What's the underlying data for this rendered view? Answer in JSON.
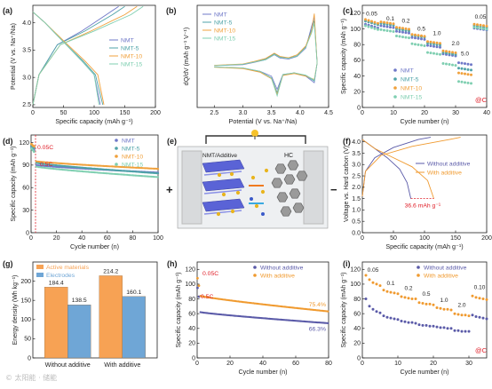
{
  "colors": {
    "NMT": "#6f78c8",
    "NMT-5": "#4fa3a8",
    "NMT-10": "#f0a13c",
    "NMT-15": "#7fcfb1",
    "without": "#5a5aa8",
    "with": "#f09a2f",
    "red": "#e0202a",
    "bar_active": "#f7a254",
    "bar_elec": "#6fa6d6"
  },
  "panels": {
    "a": {
      "letter": "(a)",
      "xlabel": "Specific capacity (mAh g⁻¹)",
      "ylabel": "Potential (V vs. Na⁺/Na)",
      "xticks": [
        "0",
        "50",
        "100",
        "150",
        "200"
      ],
      "yticks": [
        "2.5",
        "3.0",
        "3.5",
        "4.0"
      ],
      "legend": [
        "NMT",
        "NMT-5",
        "NMT-10",
        "NMT-15"
      ]
    },
    "b": {
      "letter": "(b)",
      "xlabel": "Potential (V vs. Na⁺/Na)",
      "ylabel": "dQ/dV (mAh g⁻¹ V⁻¹)",
      "xticks": [
        "2.5",
        "3.0",
        "3.5",
        "4.0",
        "4.5"
      ],
      "legend": [
        "NMT",
        "NMT-5",
        "NMT-10",
        "NMT-15"
      ]
    },
    "c": {
      "letter": "(c)",
      "xlabel": "Cycle number (n)",
      "ylabel": "Specific capacity (mAh g⁻¹)",
      "xticks": [
        "0",
        "10",
        "20",
        "30",
        "40"
      ],
      "yticks": [
        "0",
        "20",
        "40",
        "60",
        "80",
        "100",
        "120"
      ],
      "legend": [
        "NMT",
        "NMT-5",
        "NMT-10",
        "NMT-15"
      ],
      "rates": [
        "0.05",
        "0.1",
        "0.2",
        "0.5",
        "1.0",
        "2.0",
        "5.0",
        "0.05"
      ],
      "unit": "@C"
    },
    "d": {
      "letter": "(d)",
      "xlabel": "Cycle number (n)",
      "ylabel": "Specific capacity (mAh g⁻¹)",
      "xticks": [
        "0",
        "20",
        "40",
        "60",
        "80",
        "100"
      ],
      "yticks": [
        "0",
        "30",
        "60",
        "90",
        "120"
      ],
      "legend": [
        "NMT",
        "NMT-5",
        "NMT-10",
        "NMT-15"
      ],
      "ann1": "0.05C",
      "ann2": "0.5C"
    },
    "e": {
      "letter": "(e)",
      "cathode": "NMT/Additive",
      "anode": "HC",
      "plus": "+",
      "minus": "−"
    },
    "f": {
      "letter": "(f)",
      "xlabel": "Specific capacity (mAh g⁻¹)",
      "ylabel": "Voltage vs. Hard carbon (V)",
      "xticks": [
        "0",
        "50",
        "100",
        "150",
        "200"
      ],
      "yticks": [
        "0.0",
        "0.5",
        "1.0",
        "1.5",
        "2.0",
        "2.5",
        "3.0",
        "3.5",
        "4.0"
      ],
      "legend": [
        "Without additive",
        "With additive"
      ],
      "ann": "36.6 mAh g⁻¹"
    },
    "g": {
      "letter": "(g)",
      "ylabel": "Energy density (Wh kg⁻¹)",
      "yticks": [
        "0",
        "50",
        "100",
        "150",
        "200"
      ],
      "legend": [
        "Active materials",
        "Electrodes"
      ],
      "groups": [
        "Without additive",
        "With additive"
      ]
    },
    "h": {
      "letter": "(h)",
      "xlabel": "Cycle number (n)",
      "ylabel": "Specific capacity (mAh g⁻¹)",
      "xticks": [
        "0",
        "20",
        "40",
        "60",
        "80"
      ],
      "yticks": [
        "0",
        "20",
        "40",
        "60",
        "80",
        "100",
        "120"
      ],
      "legend": [
        "Without additive",
        "With additive"
      ],
      "ann1": "0.05C",
      "ann2": "0.5C",
      "pct_with": "75.4%",
      "pct_without": "66.3%"
    },
    "i": {
      "letter": "(i)",
      "xlabel": "Cycle number (n)",
      "ylabel": "Specific capacity (mAh g⁻¹)",
      "xticks": [
        "0",
        "10",
        "20",
        "30"
      ],
      "yticks": [
        "0",
        "20",
        "40",
        "60",
        "80",
        "100",
        "120"
      ],
      "legend": [
        "Without additive",
        "With additive"
      ],
      "rates": [
        "0.05",
        "0.1",
        "0.2",
        "0.5",
        "1.0",
        "2.0",
        "0.10"
      ],
      "unit": "@C"
    }
  },
  "chart_data": [
    {
      "panel": "a",
      "type": "line",
      "xlim": [
        0,
        200
      ],
      "ylim": [
        2.5,
        4.3
      ],
      "series": [
        {
          "name": "NMT",
          "charge": [
            [
              0,
              2.5
            ],
            [
              10,
              3.05
            ],
            [
              40,
              3.6
            ],
            [
              80,
              3.85
            ],
            [
              120,
              4.15
            ],
            [
              140,
              4.3
            ]
          ],
          "discharge": [
            [
              0,
              4.2
            ],
            [
              20,
              4.0
            ],
            [
              50,
              3.65
            ],
            [
              80,
              3.3
            ],
            [
              100,
              3.05
            ],
            [
              110,
              2.5
            ]
          ]
        },
        {
          "name": "NMT-5",
          "charge": [
            [
              0,
              2.5
            ],
            [
              10,
              3.05
            ],
            [
              40,
              3.6
            ],
            [
              85,
              3.85
            ],
            [
              130,
              4.15
            ],
            [
              150,
              4.3
            ]
          ],
          "discharge": [
            [
              0,
              4.2
            ],
            [
              20,
              4.0
            ],
            [
              50,
              3.65
            ],
            [
              82,
              3.3
            ],
            [
              102,
              3.05
            ],
            [
              114,
              2.5
            ]
          ]
        },
        {
          "name": "NMT-10",
          "charge": [
            [
              0,
              2.5
            ],
            [
              10,
              3.05
            ],
            [
              45,
              3.6
            ],
            [
              95,
              3.85
            ],
            [
              150,
              4.15
            ],
            [
              170,
              4.3
            ]
          ],
          "discharge": [
            [
              0,
              4.2
            ],
            [
              20,
              4.0
            ],
            [
              52,
              3.65
            ],
            [
              85,
              3.3
            ],
            [
              106,
              3.05
            ],
            [
              116,
              2.5
            ]
          ]
        },
        {
          "name": "NMT-15",
          "charge": [
            [
              0,
              2.5
            ],
            [
              10,
              3.05
            ],
            [
              45,
              3.6
            ],
            [
              100,
              3.85
            ],
            [
              160,
              4.15
            ],
            [
              180,
              4.3
            ]
          ],
          "discharge": [
            [
              0,
              4.2
            ],
            [
              20,
              4.0
            ],
            [
              50,
              3.65
            ],
            [
              80,
              3.3
            ],
            [
              100,
              3.05
            ],
            [
              108,
              2.5
            ]
          ]
        }
      ]
    },
    {
      "panel": "b",
      "type": "line",
      "xlim": [
        2.2,
        4.5
      ],
      "ylim": [
        -1.2,
        1.8
      ],
      "series": [
        {
          "name": "NMT",
          "x": [
            2.5,
            3.0,
            3.2,
            3.4,
            3.55,
            3.65,
            3.8,
            3.95,
            4.1,
            4.2,
            4.25,
            4.3,
            4.25,
            4.1,
            3.9,
            3.7,
            3.6,
            3.5,
            3.3,
            3.0,
            2.5
          ],
          "y": [
            0.02,
            0.05,
            0.12,
            0.2,
            0.35,
            0.25,
            0.22,
            0.3,
            0.55,
            1.2,
            1.5,
            0.1,
            -0.5,
            -0.3,
            -0.2,
            -0.25,
            -0.7,
            -0.3,
            -0.15,
            -0.05,
            -0.02
          ]
        },
        {
          "name": "NMT-5",
          "x": [
            2.5,
            3.0,
            3.2,
            3.4,
            3.55,
            3.65,
            3.8,
            3.95,
            4.1,
            4.2,
            4.25,
            4.3,
            4.25,
            4.1,
            3.9,
            3.7,
            3.6,
            3.5,
            3.3,
            3.0,
            2.5
          ],
          "y": [
            0.02,
            0.06,
            0.14,
            0.22,
            0.38,
            0.28,
            0.25,
            0.32,
            0.6,
            1.1,
            1.4,
            0.1,
            -0.45,
            -0.28,
            -0.2,
            -0.26,
            -0.8,
            -0.35,
            -0.16,
            -0.06,
            -0.02
          ]
        },
        {
          "name": "NMT-10",
          "x": [
            2.5,
            3.0,
            3.2,
            3.4,
            3.55,
            3.65,
            3.8,
            3.95,
            4.1,
            4.2,
            4.25,
            4.3,
            4.25,
            4.1,
            3.9,
            3.7,
            3.6,
            3.5,
            3.3,
            3.0,
            2.5
          ],
          "y": [
            0.03,
            0.07,
            0.15,
            0.24,
            0.4,
            0.3,
            0.26,
            0.35,
            0.62,
            1.05,
            1.6,
            0.1,
            -0.4,
            -0.3,
            -0.22,
            -0.28,
            -0.85,
            -0.38,
            -0.18,
            -0.07,
            -0.03
          ]
        },
        {
          "name": "NMT-15",
          "x": [
            2.5,
            3.0,
            3.2,
            3.4,
            3.55,
            3.65,
            3.8,
            3.95,
            4.1,
            4.2,
            4.25,
            4.3,
            4.25,
            4.1,
            3.9,
            3.7,
            3.6,
            3.5,
            3.3,
            3.0,
            2.5
          ],
          "y": [
            0.02,
            0.06,
            0.13,
            0.2,
            0.36,
            0.27,
            0.24,
            0.31,
            0.58,
            1.0,
            1.3,
            0.1,
            -0.42,
            -0.27,
            -0.2,
            -0.25,
            -0.9,
            -0.36,
            -0.15,
            -0.05,
            -0.02
          ]
        }
      ]
    },
    {
      "panel": "c",
      "type": "scatter",
      "xlim": [
        0,
        40
      ],
      "ylim": [
        0,
        130
      ],
      "segments": [
        [
          1,
          5
        ],
        [
          6,
          10
        ],
        [
          11,
          15
        ],
        [
          16,
          20
        ],
        [
          21,
          25
        ],
        [
          26,
          30
        ],
        [
          31,
          35
        ],
        [
          36,
          40
        ]
      ],
      "series": [
        {
          "name": "NMT",
          "values": [
            106,
            104,
            97,
            89,
            79,
            68,
            57,
            101
          ]
        },
        {
          "name": "NMT-5",
          "values": [
            110,
            107,
            100,
            92,
            82,
            70,
            50,
            104
          ]
        },
        {
          "name": "NMT-10",
          "values": [
            112,
            109,
            102,
            93,
            84,
            72,
            44,
            106
          ]
        },
        {
          "name": "NMT-15",
          "values": [
            104,
            99,
            91,
            81,
            70,
            56,
            33,
            102
          ]
        }
      ]
    },
    {
      "panel": "d",
      "type": "scatter",
      "xlim": [
        0,
        100
      ],
      "ylim": [
        0,
        130
      ],
      "series": [
        {
          "name": "NMT",
          "first": [
            114,
            112,
            110
          ],
          "start": 90,
          "end": 80
        },
        {
          "name": "NMT-5",
          "first": [
            116,
            114,
            113
          ],
          "start": 93,
          "end": 79
        },
        {
          "name": "NMT-10",
          "first": [
            118,
            116,
            115
          ],
          "start": 95,
          "end": 85
        },
        {
          "name": "NMT-15",
          "first": [
            112,
            110,
            108
          ],
          "start": 88,
          "end": 74
        }
      ]
    },
    {
      "panel": "f",
      "type": "line",
      "xlim": [
        0,
        200
      ],
      "ylim": [
        0,
        4.2
      ],
      "series": [
        {
          "name": "Without additive",
          "charge": [
            [
              0,
              1.6
            ],
            [
              5,
              2.7
            ],
            [
              20,
              3.3
            ],
            [
              50,
              3.75
            ],
            [
              90,
              4.1
            ],
            [
              110,
              4.2
            ]
          ],
          "discharge": [
            [
              0,
              4.1
            ],
            [
              20,
              3.7
            ],
            [
              40,
              3.3
            ],
            [
              60,
              2.8
            ],
            [
              72,
              2.2
            ],
            [
              78,
              1.5
            ]
          ]
        },
        {
          "name": "With additive",
          "charge": [
            [
              0,
              1.6
            ],
            [
              5,
              2.7
            ],
            [
              30,
              3.4
            ],
            [
              80,
              3.8
            ],
            [
              140,
              4.1
            ],
            [
              158,
              4.2
            ]
          ],
          "discharge": [
            [
              0,
              4.1
            ],
            [
              20,
              3.7
            ],
            [
              50,
              3.3
            ],
            [
              80,
              2.9
            ],
            [
              105,
              2.3
            ],
            [
              115,
              1.5
            ]
          ]
        }
      ],
      "annotation_value": 36.6
    },
    {
      "panel": "g",
      "type": "bar",
      "categories": [
        "Without additive",
        "With additive"
      ],
      "ylim": [
        0,
        250
      ],
      "series": [
        {
          "name": "Active materials",
          "values": [
            184.4,
            214.2
          ]
        },
        {
          "name": "Electrodes",
          "values": [
            138.5,
            160.1
          ]
        }
      ]
    },
    {
      "panel": "h",
      "type": "scatter",
      "xlim": [
        0,
        80
      ],
      "ylim": [
        0,
        130
      ],
      "series": [
        {
          "name": "Without additive",
          "first": [
            95,
            83
          ],
          "start": 62,
          "end": 47,
          "retention": "66.3%"
        },
        {
          "name": "With additive",
          "first": [
            108,
            98
          ],
          "start": 84,
          "end": 63,
          "retention": "75.4%"
        }
      ]
    },
    {
      "panel": "i",
      "type": "scatter",
      "xlim": [
        0,
        35
      ],
      "ylim": [
        0,
        130
      ],
      "segments": [
        [
          1,
          5
        ],
        [
          6,
          10
        ],
        [
          11,
          15
        ],
        [
          16,
          20
        ],
        [
          21,
          25
        ],
        [
          26,
          30
        ],
        [
          31,
          35
        ]
      ],
      "series": [
        {
          "name": "Without additive",
          "values": [
            [
              80,
              70,
              66,
              63,
              61
            ],
            [
              57,
              55,
              54,
              53,
              52
            ],
            [
              50,
              49,
              48,
              48,
              47
            ],
            [
              45,
              44,
              44,
              43,
              43
            ],
            [
              42,
              41,
              41,
              40,
              40
            ],
            [
              37,
              37,
              36,
              36,
              36
            ],
            [
              58,
              56,
              55,
              54,
              53
            ]
          ]
        },
        {
          "name": "With additive",
          "values": [
            [
              112,
              106,
              102,
              100,
              98
            ],
            [
              92,
              90,
              89,
              88,
              87
            ],
            [
              83,
              82,
              81,
              80,
              80
            ],
            [
              75,
              74,
              73,
              73,
              72
            ],
            [
              68,
              67,
              66,
              66,
              65
            ],
            [
              60,
              59,
              58,
              58,
              57
            ],
            [
              84,
              82,
              81,
              80,
              79
            ]
          ]
        }
      ]
    }
  ]
}
